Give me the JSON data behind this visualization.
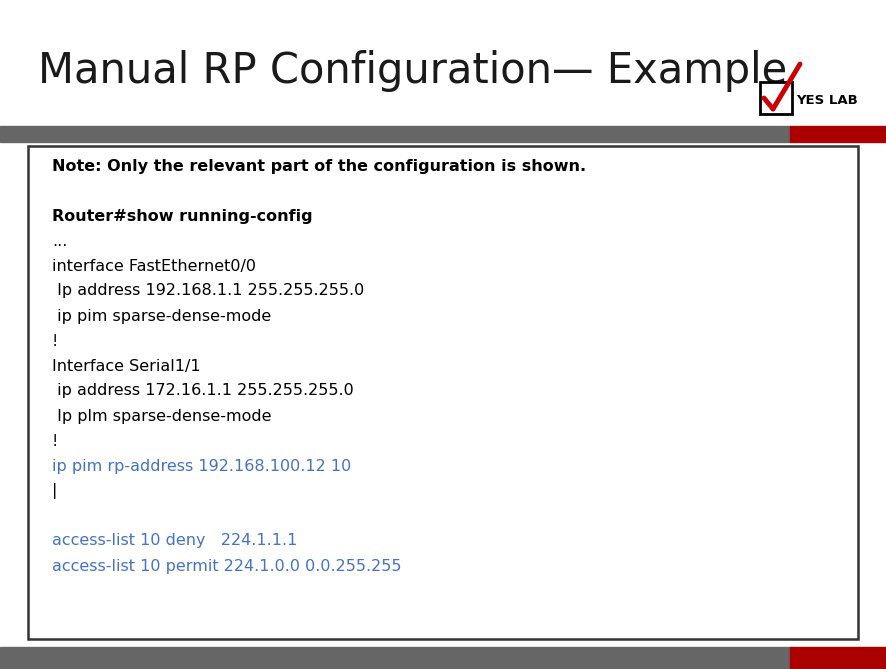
{
  "title": "Manual RP Configuration— Example",
  "title_fontsize": 30,
  "title_color": "#1a1a1a",
  "background_color": "#ffffff",
  "yes_lab_text": "YES LAB",
  "separator_gray_color": "#666666",
  "separator_red_color": "#aa0000",
  "box_lines": [
    {
      "text": "Note: Only the relevant part of the configuration is shown.",
      "color": "#000000",
      "bold": true
    },
    {
      "text": "",
      "color": "#000000",
      "bold": false
    },
    {
      "text": "Router#show running-config",
      "color": "#000000",
      "bold": true
    },
    {
      "text": "...",
      "color": "#000000",
      "bold": false
    },
    {
      "text": "interface FastEthernet0/0",
      "color": "#000000",
      "bold": false
    },
    {
      "text": " Ip address 192.168.1.1 255.255.255.0",
      "color": "#000000",
      "bold": false
    },
    {
      "text": " ip pim sparse-dense-mode",
      "color": "#000000",
      "bold": false
    },
    {
      "text": "!",
      "color": "#000000",
      "bold": false
    },
    {
      "text": "Interface Serial1/1",
      "color": "#000000",
      "bold": false
    },
    {
      "text": " ip address 172.16.1.1 255.255.255.0",
      "color": "#000000",
      "bold": false
    },
    {
      "text": " Ip plm sparse-dense-mode",
      "color": "#000000",
      "bold": false
    },
    {
      "text": "!",
      "color": "#000000",
      "bold": false
    },
    {
      "text": "ip pim rp-address 192.168.100.12 10",
      "color": "#4472c4",
      "bold": false
    },
    {
      "text": "|",
      "color": "#000000",
      "bold": false
    },
    {
      "text": "",
      "color": "#000000",
      "bold": false
    },
    {
      "text": "access-list 10 deny   224.1.1.1",
      "color": "#4472c4",
      "bold": false
    },
    {
      "text": "access-list 10 permit 224.1.0.0 0.0.255.255",
      "color": "#4472c4",
      "bold": false
    }
  ],
  "checkmark_color": "#cc0000",
  "fig_width": 8.87,
  "fig_height": 6.69,
  "dpi": 100
}
